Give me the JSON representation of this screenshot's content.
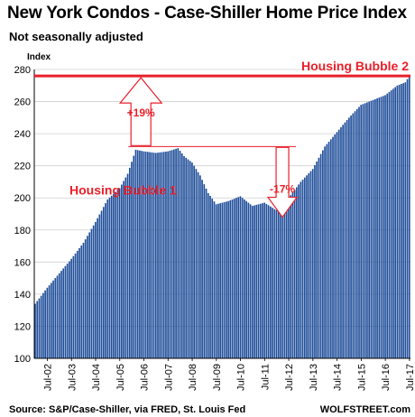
{
  "title": "New York Condos - Case-Shiller Home Price Index",
  "subtitle": "Not seasonally adjusted",
  "colors": {
    "bars": "#1f4e9a",
    "annotation": "#e8202a",
    "text": "#000000"
  },
  "chart_data": {
    "type": "bar",
    "ylabel": "Index",
    "ylim": [
      100,
      280
    ],
    "yticks": [
      100,
      120,
      140,
      160,
      180,
      200,
      220,
      240,
      260,
      280
    ],
    "grid": "horizontal",
    "x_tick_labels": [
      "Jul-02",
      "Jul-03",
      "Jul-04",
      "Jul-05",
      "Jul-06",
      "Jul-07",
      "Jul-08",
      "Jul-09",
      "Jul-10",
      "Jul-11",
      "Jul-12",
      "Jul-13",
      "Jul-14",
      "Jul-15",
      "Jul-16",
      "Jul-17"
    ],
    "x_start": "Jan-02",
    "x_end": "Jul-17",
    "frequency": "monthly",
    "anchors": [
      [
        "Jan-02",
        134
      ],
      [
        "Jul-02",
        144
      ],
      [
        "Jan-03",
        153
      ],
      [
        "Jul-03",
        162
      ],
      [
        "Jan-04",
        172
      ],
      [
        "Jul-04",
        185
      ],
      [
        "Jan-05",
        199
      ],
      [
        "Jul-05",
        206
      ],
      [
        "Nov-05",
        215
      ],
      [
        "Mar-06",
        230
      ],
      [
        "Jul-06",
        229
      ],
      [
        "Jan-07",
        228
      ],
      [
        "Jul-07",
        229
      ],
      [
        "Dec-07",
        231
      ],
      [
        "Mar-08",
        226
      ],
      [
        "Jul-08",
        222
      ],
      [
        "Nov-08",
        214
      ],
      [
        "Mar-09",
        203
      ],
      [
        "Jul-09",
        196
      ],
      [
        "Jan-10",
        198
      ],
      [
        "Jul-10",
        201
      ],
      [
        "Jan-11",
        195
      ],
      [
        "Jul-11",
        197
      ],
      [
        "Dec-11",
        193
      ],
      [
        "Mar-12",
        191
      ],
      [
        "Jul-12",
        200
      ],
      [
        "Jan-13",
        210
      ],
      [
        "Jul-13",
        218
      ],
      [
        "Jan-14",
        232
      ],
      [
        "Jul-14",
        241
      ],
      [
        "Jan-15",
        250
      ],
      [
        "Jul-15",
        258
      ],
      [
        "Jan-16",
        261
      ],
      [
        "Jul-16",
        264
      ],
      [
        "Jan-17",
        270
      ],
      [
        "May-17",
        272
      ],
      [
        "Jul-17",
        276
      ]
    ],
    "annotations": {
      "bubble1_label": "Housing Bubble 1",
      "bubble2_label": "Housing Bubble 2",
      "rise_label": "+19%",
      "fall_label": "-17%",
      "peak1_value": 232,
      "peak2_value": 276
    },
    "source": "Source: S&P/Case-Shiller, via FRED,  St. Louis Fed",
    "watermark": "WOLFSTREET.com"
  }
}
